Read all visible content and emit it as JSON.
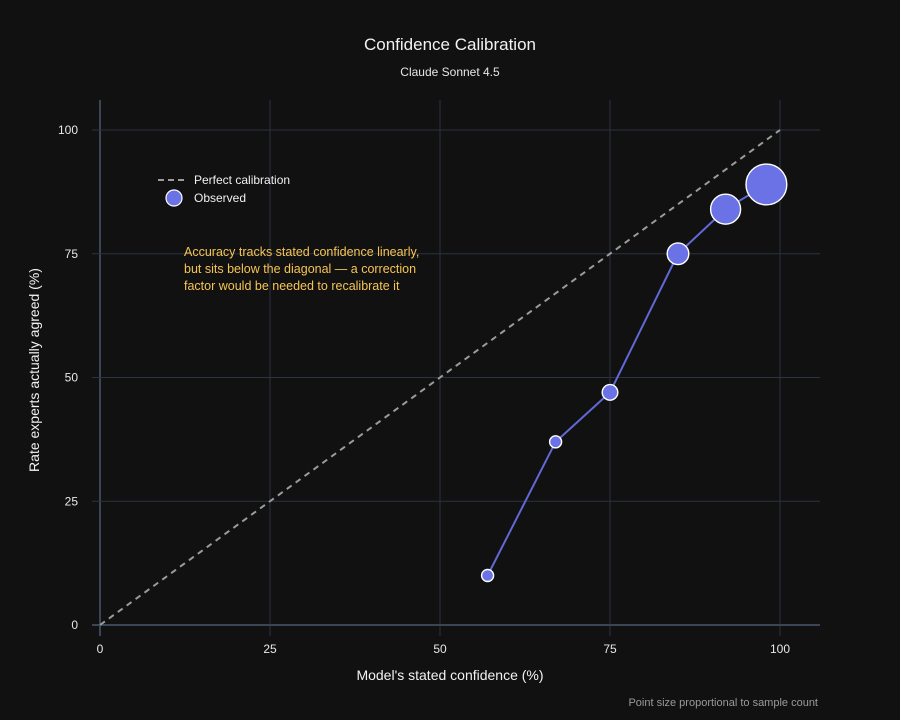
{
  "chart_data": {
    "type": "scatter",
    "title": "Confidence Calibration",
    "subtitle": "Claude Sonnet 4.5",
    "xlabel": "Model's stated confidence (%)",
    "ylabel": "Rate experts actually agreed (%)",
    "xlim": [
      0,
      106
    ],
    "ylim": [
      -2,
      106
    ],
    "x_ticks": [
      "0",
      "25",
      "50",
      "75",
      "100"
    ],
    "y_ticks": [
      "0",
      "25",
      "50",
      "75",
      "100"
    ],
    "grid": true,
    "legend": {
      "position": "top-left",
      "entries": [
        "Perfect calibration",
        "Observed"
      ]
    },
    "series": [
      {
        "name": "Perfect calibration",
        "kind": "dashed-line",
        "x": [
          0,
          100
        ],
        "y": [
          0,
          100
        ]
      },
      {
        "name": "Observed",
        "kind": "line+markers",
        "x": [
          57,
          67,
          75,
          85,
          92,
          98
        ],
        "y": [
          10,
          37,
          47,
          75,
          84,
          89
        ],
        "relative_size": [
          1.0,
          1.0,
          1.3,
          1.8,
          2.5,
          3.4
        ]
      }
    ],
    "annotation": [
      "Accuracy tracks stated confidence linearly,",
      "but sits below the diagonal — a correction",
      "factor would be needed to recalibrate it"
    ],
    "footnote": "Point size proportional to sample count"
  },
  "colors": {
    "background": "#111111",
    "grid": "#2a3340",
    "axis_line": "#3a4656",
    "observed_line": "#6069d6",
    "observed_marker": "#6b72e6",
    "marker_stroke": "#ffffff",
    "diagonal": "#9b9b9b",
    "annotation": "#f6c453"
  }
}
